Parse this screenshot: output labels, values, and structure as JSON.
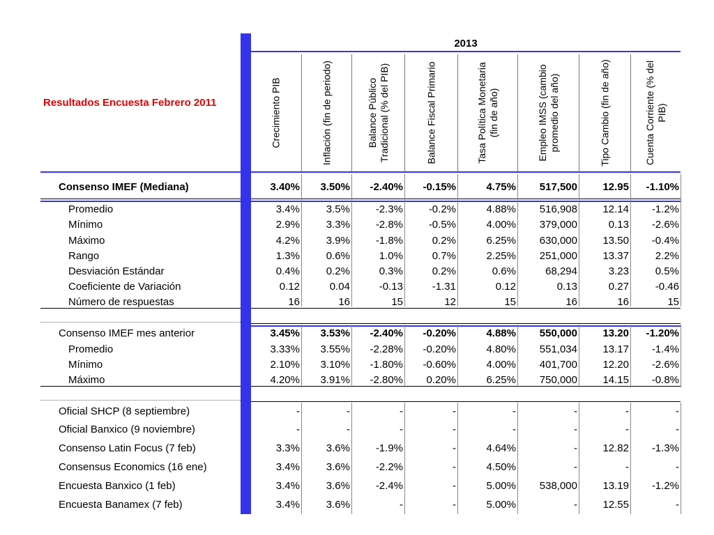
{
  "title": "Resultados Encuesta Febrero 2011",
  "year": "2013",
  "columns": [
    "Crecimiento PIB",
    "Inflación (fin de periodo)",
    "Balance Público Tradicional (% del PIB)",
    "Balance Fiscal Primario",
    "Tasa Política Monetaria (fin de año)",
    "Empleo IMSS (cambio promedio del año)",
    "Tipo Cambio  (fin de año)",
    "Cuenta Corriente (% del PIB)"
  ],
  "rows": [
    {
      "label": "Consenso IMEF (Mediana)",
      "values": [
        "3.40%",
        "3.50%",
        "-2.40%",
        "-0.15%",
        "4.75%",
        "517,500",
        "12.95",
        "-1.10%"
      ]
    },
    {
      "label": "Promedio",
      "values": [
        "3.4%",
        "3.5%",
        "-2.3%",
        "-0.2%",
        "4.88%",
        "516,908",
        "12.14",
        "-1.2%"
      ]
    },
    {
      "label": "Mínimo",
      "values": [
        "2.9%",
        "3.3%",
        "-2.8%",
        "-0.5%",
        "4.00%",
        "379,000",
        "0.13",
        "-2.6%"
      ]
    },
    {
      "label": "Máximo",
      "values": [
        "4.2%",
        "3.9%",
        "-1.8%",
        "0.2%",
        "6.25%",
        "630,000",
        "13.50",
        "-0.4%"
      ]
    },
    {
      "label": "Rango",
      "values": [
        "1.3%",
        "0.6%",
        "1.0%",
        "0.7%",
        "2.25%",
        "251,000",
        "13.37",
        "2.2%"
      ]
    },
    {
      "label": "Desviación Estándar",
      "values": [
        "0.4%",
        "0.2%",
        "0.3%",
        "0.2%",
        "0.6%",
        "68,294",
        "3.23",
        "0.5%"
      ]
    },
    {
      "label": "Coeficiente de Variación",
      "values": [
        "0.12",
        "0.04",
        "-0.13",
        "-1.31",
        "0.12",
        "0.13",
        "0.27",
        "-0.46"
      ]
    },
    {
      "label": "Número de respuestas",
      "values": [
        "16",
        "16",
        "15",
        "12",
        "15",
        "16",
        "16",
        "15"
      ]
    },
    {
      "label": "Consenso IMEF mes anterior",
      "values": [
        "3.45%",
        "3.53%",
        "-2.40%",
        "-0.20%",
        "4.88%",
        "550,000",
        "13.20",
        "-1.20%"
      ]
    },
    {
      "label": "Promedio",
      "values": [
        "3.33%",
        "3.55%",
        "-2.28%",
        "-0.20%",
        "4.80%",
        "551,034",
        "13.17",
        "-1.4%"
      ]
    },
    {
      "label": "Mínimo",
      "values": [
        "2.10%",
        "3.10%",
        "-1.80%",
        "-0.60%",
        "4.00%",
        "401,700",
        "12.20",
        "-2.6%"
      ]
    },
    {
      "label": "Máximo",
      "values": [
        "4.20%",
        "3.91%",
        "-2.80%",
        "0.20%",
        "6.25%",
        "750,000",
        "14.15",
        "-0.8%"
      ]
    },
    {
      "label": "Oficial SHCP (8 septiembre)",
      "values": [
        "-",
        "-",
        "-",
        "-",
        "-",
        "-",
        "-",
        "-"
      ]
    },
    {
      "label": "Oficial Banxico (9 noviembre)",
      "values": [
        "-",
        "-",
        "-",
        "-",
        "-",
        "-",
        "-",
        "-"
      ]
    },
    {
      "label": "Consenso Latin Focus (7 feb)",
      "values": [
        "3.3%",
        "3.6%",
        "-1.9%",
        "-",
        "4.64%",
        "-",
        "12.82",
        "-1.3%"
      ]
    },
    {
      "label": "Consensus Economics (16 ene)",
      "values": [
        "3.4%",
        "3.6%",
        "-2.2%",
        "-",
        "4.50%",
        "-",
        "-",
        "-"
      ]
    },
    {
      "label": "Encuesta Banxico (1 feb)",
      "values": [
        "3.4%",
        "3.6%",
        "-2.4%",
        "-",
        "5.00%",
        "538,000",
        "13.19",
        "-1.2%"
      ]
    },
    {
      "label": "Encuesta Banamex (7 feb)",
      "values": [
        "3.4%",
        "3.6%",
        "-",
        "-",
        "5.00%",
        "-",
        "12.55",
        "-"
      ]
    }
  ]
}
